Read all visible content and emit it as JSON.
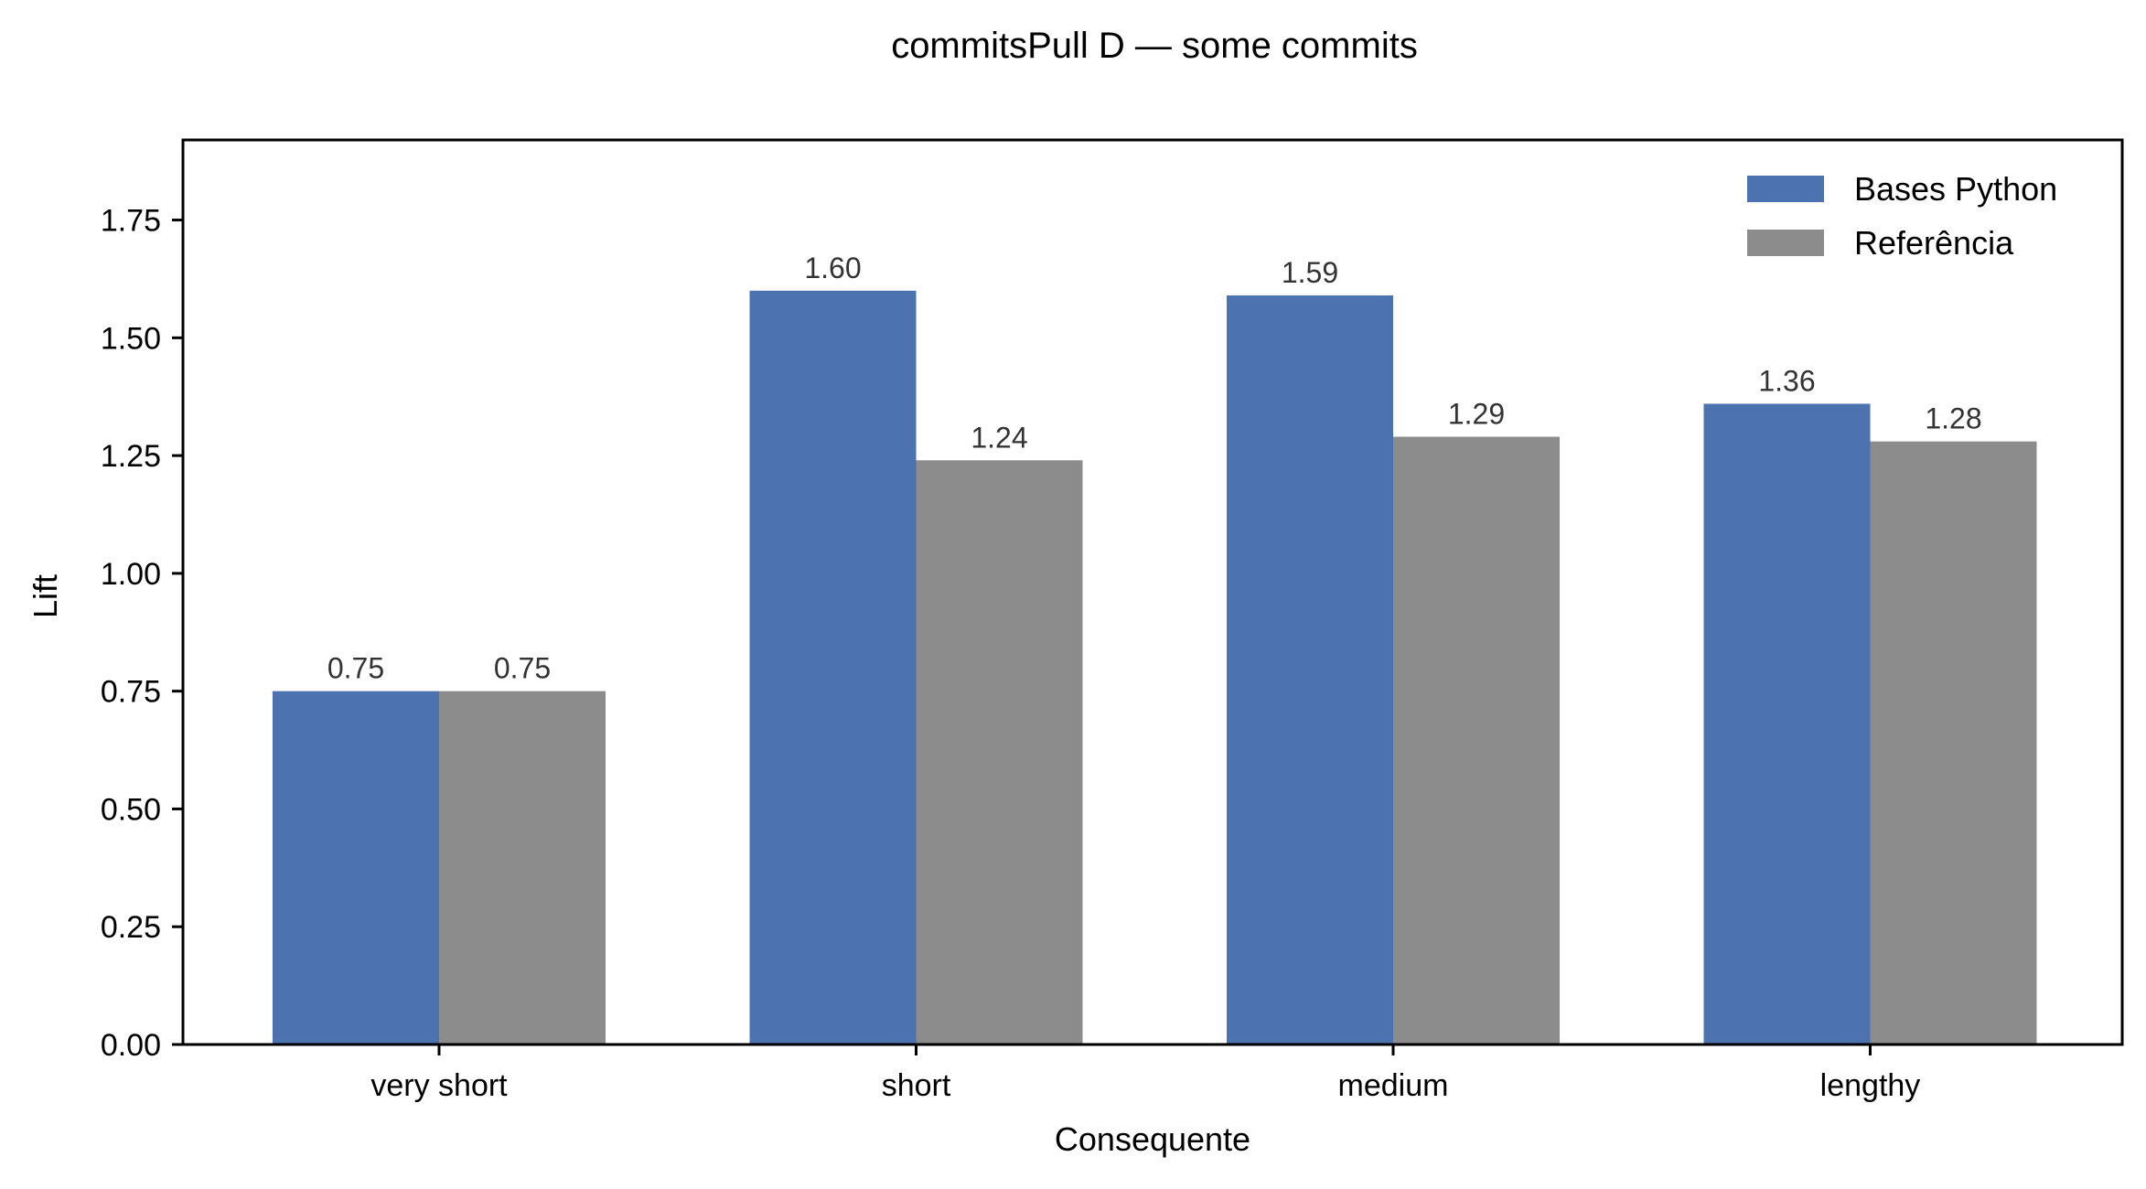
{
  "chart_data": {
    "type": "bar",
    "title": "commitsPull D — some commits",
    "xlabel": "Consequente",
    "ylabel": "Lift",
    "categories": [
      "very short",
      "short",
      "medium",
      "lengthy"
    ],
    "series": [
      {
        "name": "Bases Python",
        "values": [
          0.75,
          1.6,
          1.59,
          1.36
        ],
        "labels": [
          "0.75",
          "1.60",
          "1.59",
          "1.36"
        ],
        "color": "#4c72b0"
      },
      {
        "name": "Referência",
        "values": [
          0.75,
          1.24,
          1.29,
          1.28
        ],
        "labels": [
          "0.75",
          "1.24",
          "1.29",
          "1.28"
        ],
        "color": "#8c8c8c"
      }
    ],
    "ylim": [
      0,
      1.92
    ],
    "yticks": [
      0.0,
      0.25,
      0.5,
      0.75,
      1.0,
      1.25,
      1.5,
      1.75
    ],
    "ytick_labels": [
      "0.00",
      "0.25",
      "0.50",
      "0.75",
      "1.00",
      "1.25",
      "1.50",
      "1.75"
    ],
    "grid": false,
    "legend_position": "top-right"
  }
}
